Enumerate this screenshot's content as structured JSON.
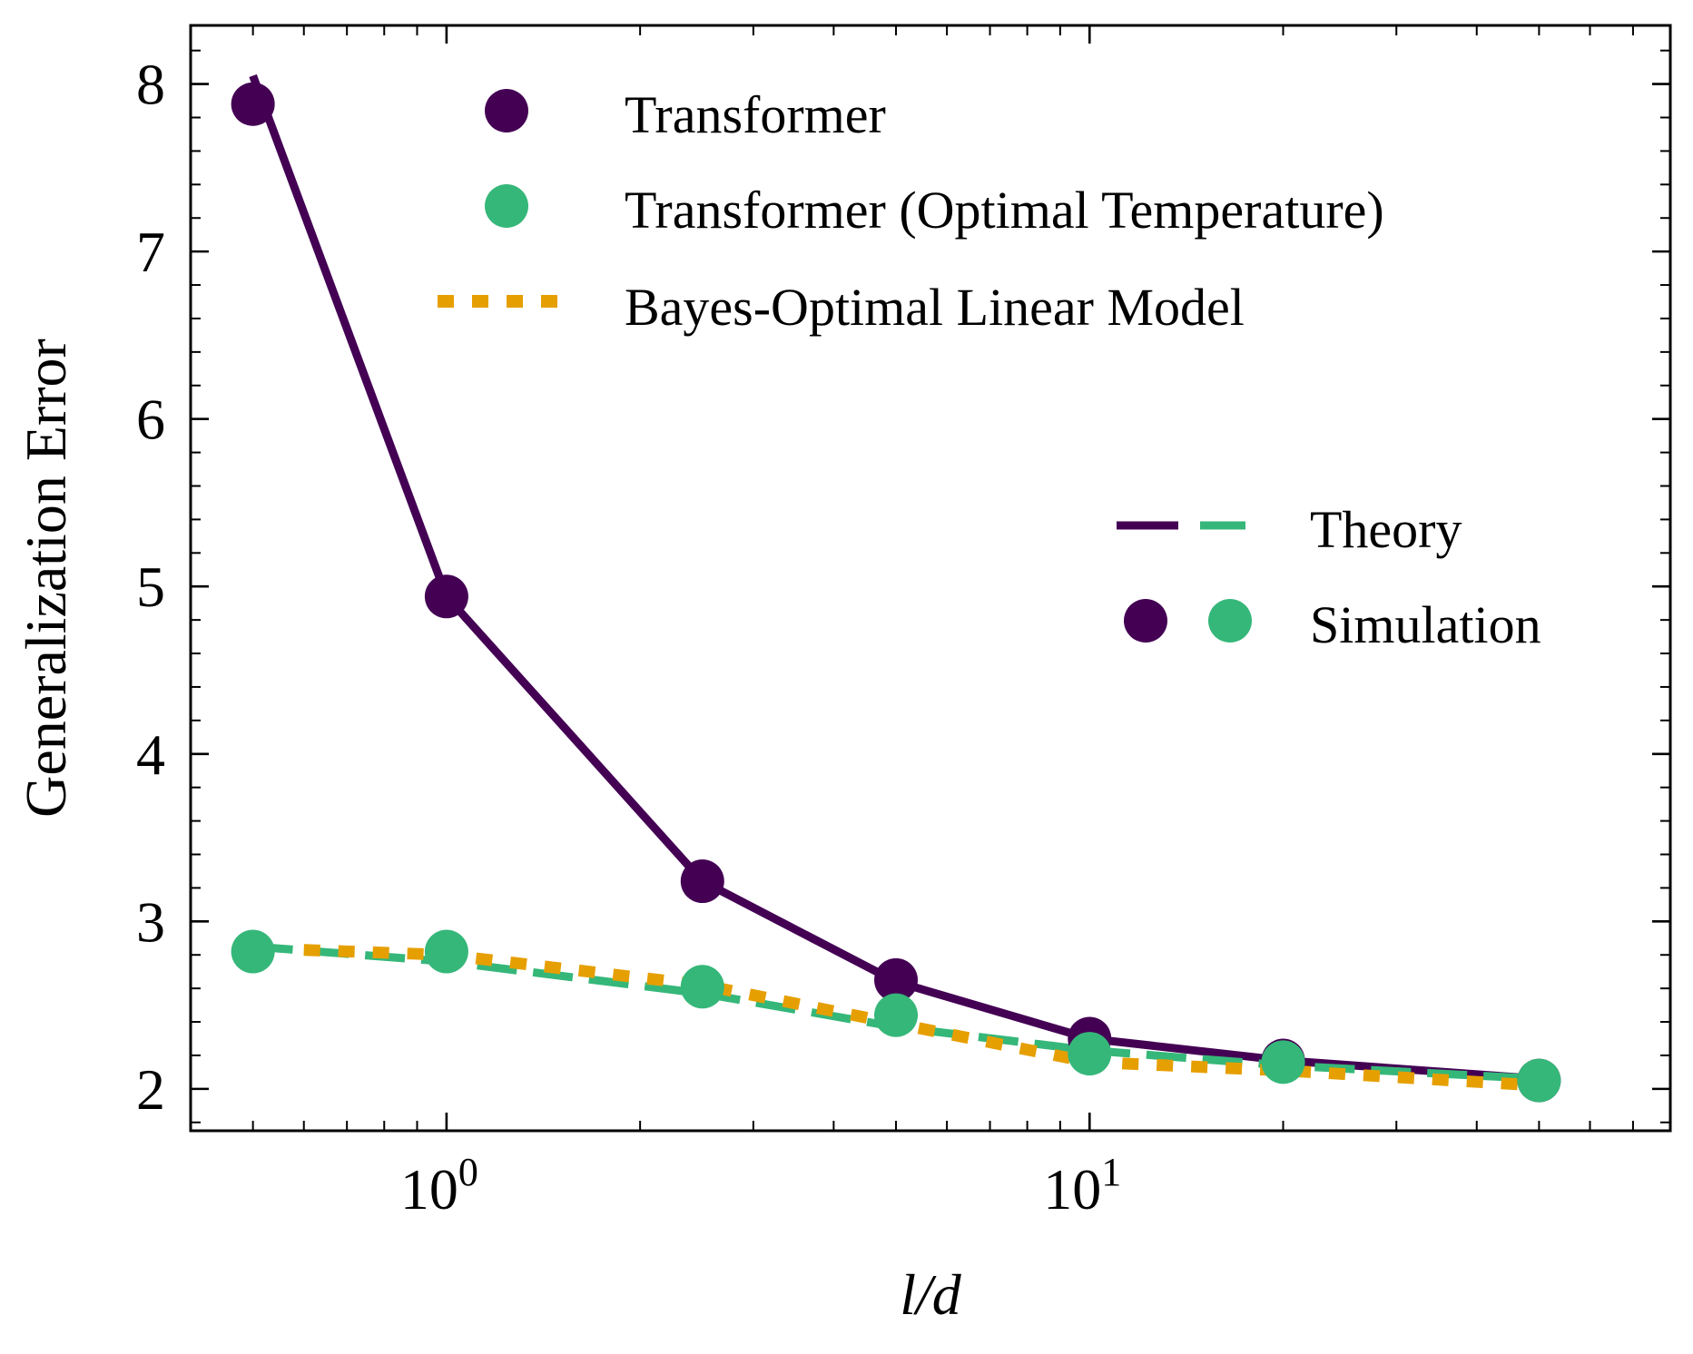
{
  "chart_data": {
    "type": "line",
    "xscale": "log",
    "xlim": [
      0.4,
      80
    ],
    "ylim": [
      1.75,
      8.35
    ],
    "xlabel": "l/d",
    "ylabel": "Generalization Error",
    "x_ticks": [
      {
        "value": 1,
        "base": "10",
        "exp": "0"
      },
      {
        "value": 10,
        "base": "10",
        "exp": "1"
      }
    ],
    "y_ticks": [
      2,
      3,
      4,
      5,
      6,
      7,
      8
    ],
    "series": [
      {
        "name": "Transformer",
        "kind": "theory",
        "style": "solid",
        "color": "#440154",
        "x": [
          0.5,
          1,
          2.5,
          5,
          10,
          20,
          50
        ],
        "y": [
          8.05,
          4.94,
          3.24,
          2.64,
          2.3,
          2.17,
          2.06
        ]
      },
      {
        "name": "Transformer",
        "kind": "simulation",
        "color": "#440154",
        "x": [
          0.5,
          1,
          2.5,
          5,
          10,
          20,
          50
        ],
        "y": [
          7.88,
          4.94,
          3.24,
          2.65,
          2.3,
          2.17,
          2.05
        ]
      },
      {
        "name": "Transformer (Optimal Temperature)",
        "kind": "theory",
        "style": "dashed",
        "color": "#35b779",
        "x": [
          0.5,
          1,
          2.5,
          5,
          10,
          20,
          50
        ],
        "y": [
          2.85,
          2.76,
          2.57,
          2.37,
          2.23,
          2.14,
          2.06
        ]
      },
      {
        "name": "Transformer (Optimal Temperature)",
        "kind": "simulation",
        "color": "#35b779",
        "x": [
          0.5,
          1,
          2.5,
          5,
          10,
          20,
          50
        ],
        "y": [
          2.82,
          2.82,
          2.61,
          2.44,
          2.21,
          2.16,
          2.05
        ]
      },
      {
        "name": "Bayes-Optimal Linear Model",
        "kind": "theory",
        "style": "dotted",
        "color": "#e69f00",
        "x": [
          0.6,
          1,
          2.5,
          5,
          10,
          20,
          50
        ],
        "y": [
          2.83,
          2.8,
          2.62,
          2.39,
          2.16,
          2.11,
          2.02
        ]
      }
    ],
    "legend_main": {
      "placement": "top",
      "entries": [
        {
          "label": "Transformer",
          "marker": "dot",
          "color": "#440154"
        },
        {
          "label": "Transformer (Optimal Temperature)",
          "marker": "dot",
          "color": "#35b779"
        },
        {
          "label": "Bayes-Optimal Linear Model",
          "marker": "dotted-line",
          "color": "#e69f00"
        }
      ]
    },
    "legend_style": {
      "placement": "center-right",
      "entries": [
        {
          "label": "Theory",
          "marker": "line-pair",
          "colors": [
            "#440154",
            "#35b779"
          ]
        },
        {
          "label": "Simulation",
          "marker": "dot-pair",
          "colors": [
            "#440154",
            "#35b779"
          ]
        }
      ]
    }
  }
}
